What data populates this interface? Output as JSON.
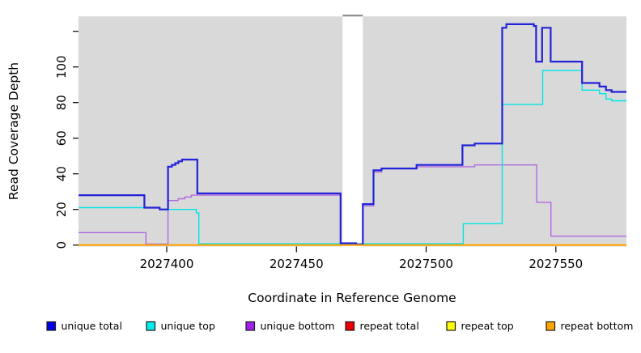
{
  "chart_data": {
    "type": "line",
    "step": true,
    "title": "",
    "xlabel": "Coordinate in Reference Genome",
    "ylabel": "Read Coverage Depth",
    "xlim": [
      2027366,
      2027577.2
    ],
    "ylim": [
      0,
      129
    ],
    "grid": false,
    "panel_background": "#d9d9d9",
    "gap_band": {
      "x_start": 2027467.8,
      "x_end": 2027475.6,
      "color": "#ffffff",
      "cap_color": "#8e8e8e"
    },
    "x_ticks": [
      {
        "value": 2027400,
        "label": "2027400"
      },
      {
        "value": 2027450,
        "label": "2027450"
      },
      {
        "value": 2027500,
        "label": "2027500"
      },
      {
        "value": 2027550,
        "label": "2027550"
      }
    ],
    "y_ticks": [
      {
        "value": 0,
        "label": "0"
      },
      {
        "value": 20,
        "label": "20"
      },
      {
        "value": 40,
        "label": "40"
      },
      {
        "value": 60,
        "label": "60"
      },
      {
        "value": 80,
        "label": "80"
      },
      {
        "value": 100,
        "label": "100"
      },
      {
        "value": 120,
        "label": ""
      }
    ],
    "legend_position": "bottom",
    "series": [
      {
        "name": "unique bottom",
        "color": "#b269e0",
        "legend_color": "#a020f0",
        "width": 1.4,
        "points": [
          [
            2027366,
            7
          ],
          [
            2027392,
            0
          ],
          [
            2027400.5,
            25
          ],
          [
            2027404.4,
            26
          ],
          [
            2027407,
            27
          ],
          [
            2027409.5,
            28
          ],
          [
            2027467,
            1
          ],
          [
            2027473,
            0
          ],
          [
            2027475.6,
            22
          ],
          [
            2027479.7,
            41
          ],
          [
            2027482.8,
            43
          ],
          [
            2027496.3,
            44
          ],
          [
            2027518.7,
            45
          ],
          [
            2027542.6,
            24
          ],
          [
            2027548.1,
            5
          ],
          [
            2027577.2,
            5
          ]
        ]
      },
      {
        "name": "unique top",
        "color": "#00e5e5",
        "legend_color": "#00eeee",
        "width": 1.4,
        "points": [
          [
            2027366,
            21
          ],
          [
            2027397.3,
            20
          ],
          [
            2027411.4,
            18
          ],
          [
            2027412.4,
            0
          ],
          [
            2027514.3,
            12
          ],
          [
            2027529.3,
            79
          ],
          [
            2027544.9,
            98
          ],
          [
            2027560.1,
            87
          ],
          [
            2027566.8,
            85
          ],
          [
            2027569.3,
            82
          ],
          [
            2027571.5,
            81
          ],
          [
            2027577.2,
            81
          ]
        ]
      },
      {
        "name": "unique total",
        "color": "#2222d8",
        "legend_color": "#0000ee",
        "width": 2.2,
        "points": [
          [
            2027366,
            28
          ],
          [
            2027391.4,
            21
          ],
          [
            2027397.3,
            20
          ],
          [
            2027400.5,
            44
          ],
          [
            2027402,
            45
          ],
          [
            2027403.3,
            46
          ],
          [
            2027404.5,
            47
          ],
          [
            2027405.9,
            48
          ],
          [
            2027411.8,
            29
          ],
          [
            2027467,
            1
          ],
          [
            2027473,
            0
          ],
          [
            2027475.6,
            23
          ],
          [
            2027479.7,
            42
          ],
          [
            2027482.8,
            43
          ],
          [
            2027496.3,
            45
          ],
          [
            2027514,
            56
          ],
          [
            2027518.7,
            57
          ],
          [
            2027529.3,
            122
          ],
          [
            2027530.9,
            124
          ],
          [
            2027541.5,
            123
          ],
          [
            2027542.4,
            103
          ],
          [
            2027544.7,
            122
          ],
          [
            2027548,
            103
          ],
          [
            2027560.1,
            91
          ],
          [
            2027566.8,
            89
          ],
          [
            2027569.3,
            87
          ],
          [
            2027571.5,
            86
          ],
          [
            2027577.2,
            86
          ]
        ]
      },
      {
        "name": "repeat total",
        "color": "#ee0000",
        "legend_color": "#ee0000",
        "width": 1.4,
        "points": [
          [
            2027366,
            0
          ],
          [
            2027577.2,
            0
          ]
        ]
      },
      {
        "name": "repeat top",
        "color": "#ffff00",
        "legend_color": "#ffff00",
        "width": 1.4,
        "points": [
          [
            2027366,
            0
          ],
          [
            2027577.2,
            0
          ]
        ]
      },
      {
        "name": "repeat bottom",
        "color": "#ffa500",
        "legend_color": "#ffa500",
        "width": 2.2,
        "points": [
          [
            2027366,
            0
          ],
          [
            2027577.2,
            0
          ]
        ]
      }
    ],
    "legend": [
      {
        "label": "unique total",
        "color": "#0000ee"
      },
      {
        "label": "unique top",
        "color": "#00eeee"
      },
      {
        "label": "unique bottom",
        "color": "#a020f0"
      },
      {
        "label": "repeat total",
        "color": "#ee0000"
      },
      {
        "label": "repeat top",
        "color": "#ffff00"
      },
      {
        "label": "repeat bottom",
        "color": "#ffa500"
      }
    ]
  }
}
